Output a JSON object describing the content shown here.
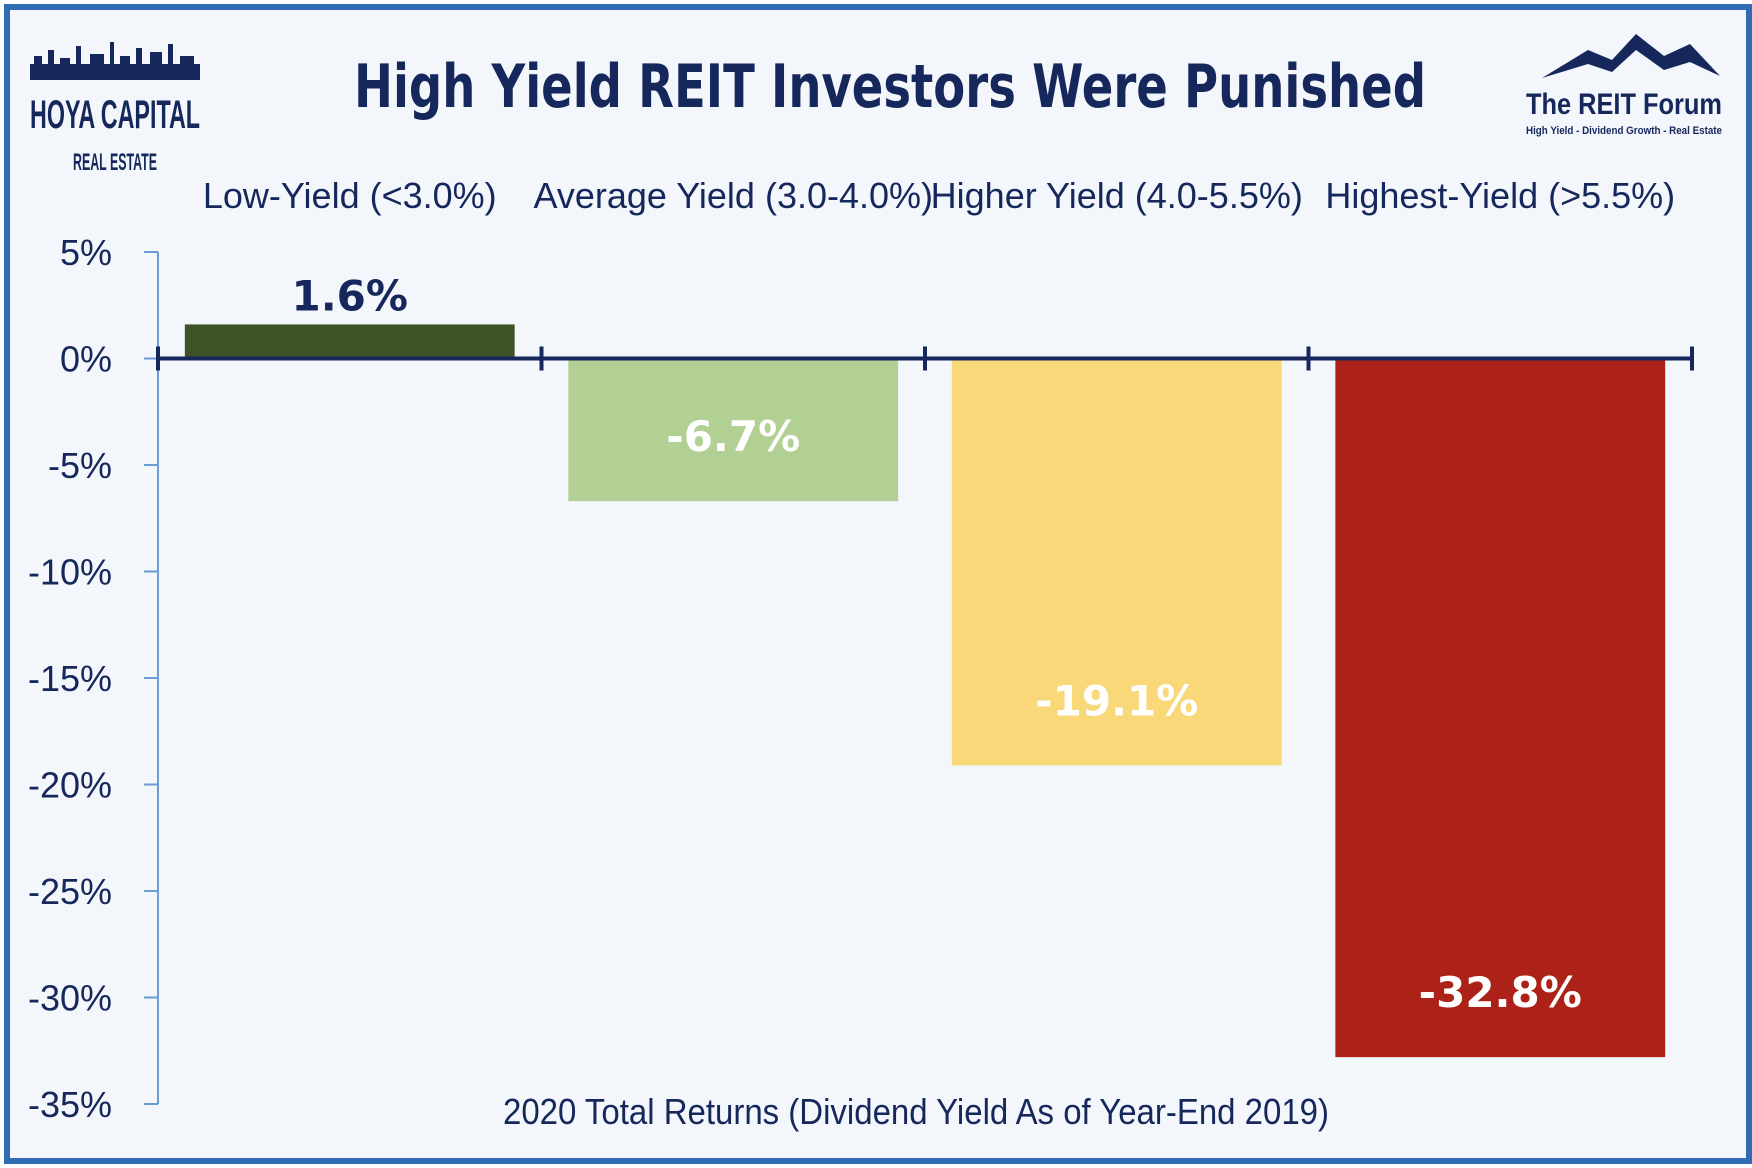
{
  "chart_data": {
    "type": "bar",
    "title": "High Yield REIT Investors Were Punished",
    "xlabel": "2020 Total Returns (Dividend Yield As of Year-End 2019)",
    "categories": [
      "Low-Yield (<3.0%)",
      "Average Yield (3.0-4.0%)",
      "Higher Yield (4.0-5.5%)",
      "Highest-Yield (>5.5%)"
    ],
    "values": [
      1.6,
      -6.7,
      -19.1,
      -32.8
    ],
    "data_labels": [
      "1.6%",
      "-6.7%",
      "-19.1%",
      "-32.8%"
    ],
    "colors": [
      "#3d5327",
      "#b3d094",
      "#f9d87a",
      "#ad2218"
    ],
    "label_colors": [
      "#16275c",
      "#ffffff",
      "#ffffff",
      "#ffffff"
    ],
    "ylim": [
      -35,
      5
    ],
    "yticks": [
      5,
      0,
      -5,
      -10,
      -15,
      -20,
      -25,
      -30,
      -35
    ],
    "ytick_labels": [
      "5%",
      "0%",
      "-5%",
      "-10%",
      "-15%",
      "-20%",
      "-25%",
      "-30%",
      "-35%"
    ],
    "grid": false,
    "axis_color": "#16275c",
    "border_color": "#2f6cb3"
  },
  "logos": {
    "left": {
      "line1": "HOYA CAPITAL",
      "line2": "REAL ESTATE"
    },
    "right": {
      "line1": "The REIT Forum",
      "line2": "High Yield - Dividend Growth - Real Estate"
    }
  }
}
